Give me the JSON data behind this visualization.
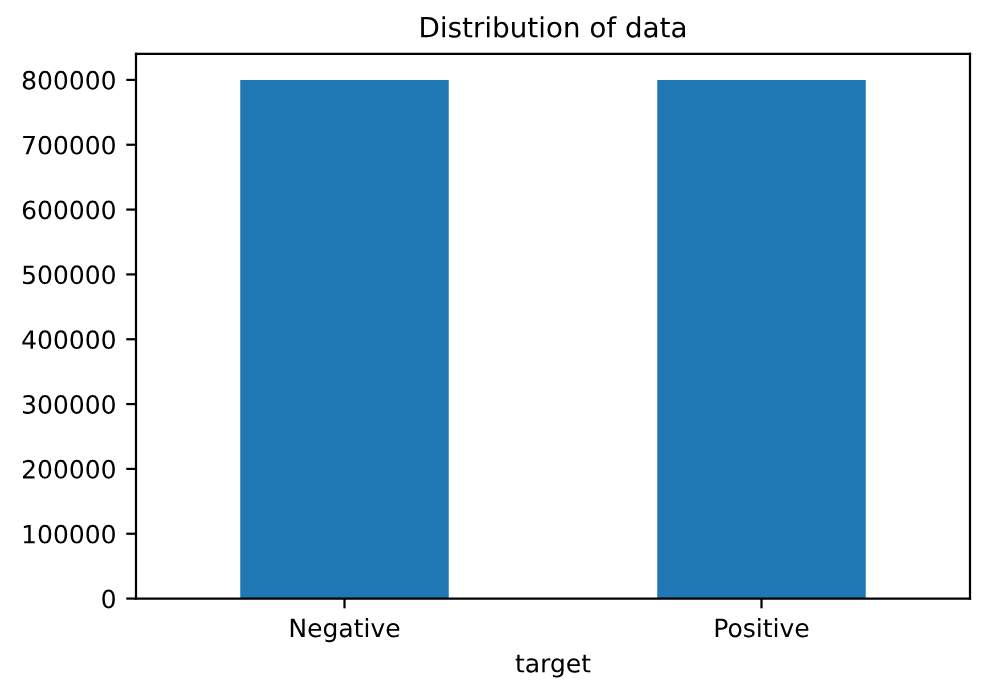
{
  "chart_data": {
    "type": "bar",
    "title": "Distribution of data",
    "xlabel": "target",
    "categories": [
      "Negative",
      "Positive"
    ],
    "values": [
      800000,
      800000
    ],
    "color": "#1f77b4",
    "ylim": [
      0,
      840000
    ],
    "yticks": [
      0,
      100000,
      200000,
      300000,
      400000,
      500000,
      600000,
      700000,
      800000
    ],
    "grid": false
  }
}
